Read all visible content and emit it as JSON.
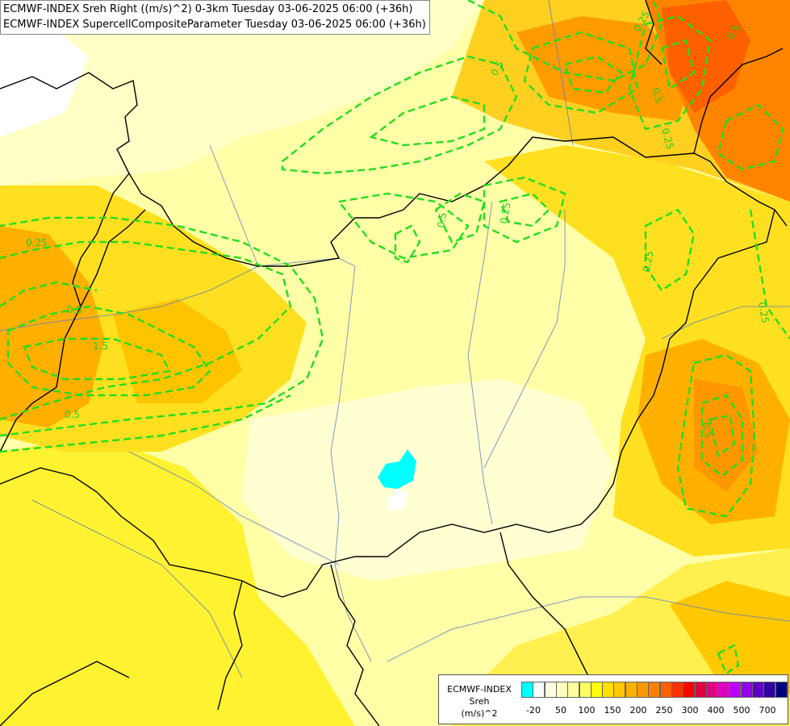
{
  "title": {
    "line1": "ECMWF-INDEX Sreh Right ((m/s)^2) 0-3km Tuesday 03-06-2025 06:00 (+36h)",
    "line2": "ECMWF-INDEX SupercellCompositeParameter Tuesday 03-06-2025 06:00 (+36h)"
  },
  "legend": {
    "line1": "ECMWF-INDEX",
    "line2": "Sreh",
    "line3": "(m/s)^2",
    "colors": [
      "#00ffff",
      "#ffffff",
      "#ffffe0",
      "#ffffc0",
      "#ffffa0",
      "#ffff60",
      "#ffff00",
      "#ffe000",
      "#ffc800",
      "#ffb000",
      "#ff9800",
      "#ff8000",
      "#ff6000",
      "#ff3000",
      "#ff0000",
      "#e00040",
      "#e00080",
      "#e000c0",
      "#c000ff",
      "#9000e0",
      "#6000c0",
      "#3000a0",
      "#000080"
    ],
    "ticks": [
      "-20",
      "50",
      "100",
      "150",
      "200",
      "250",
      "300",
      "400",
      "500",
      "700"
    ]
  },
  "contour_labels": [
    "0.25",
    "0.5",
    "0.5",
    "1.5",
    "0.5",
    "0.25",
    "0.25",
    "0.5",
    "0.25",
    "0.5",
    "0.25",
    "0.5",
    "0.5",
    "0.25"
  ],
  "colors": {
    "contour": "#22dd22",
    "border": "#000000",
    "river": "#6080c0"
  }
}
